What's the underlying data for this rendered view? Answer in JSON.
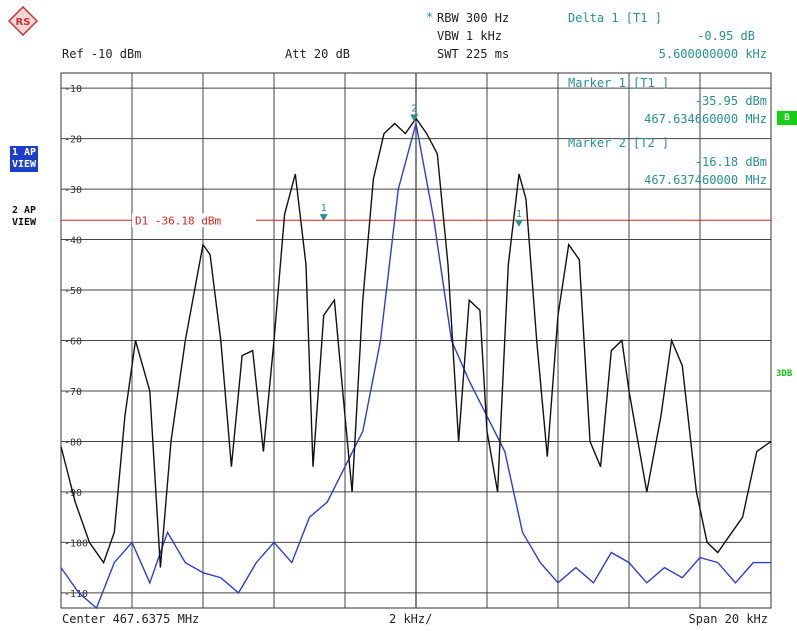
{
  "header": {
    "rbw": "RBW 300 Hz",
    "vbw": "VBW 1 kHz",
    "swt": "SWT 225 ms",
    "ref": "Ref -10 dBm",
    "att": "Att  20 dB",
    "star": "*"
  },
  "delta_marker": {
    "title": "Delta 1 [T1 ]",
    "level": "-0.95 dB",
    "freq": "5.600000000 kHz"
  },
  "marker1": {
    "title": "Marker 1 [T1 ]",
    "level": "-35.95 dBm",
    "freq": "467.634660000 MHz"
  },
  "marker2": {
    "title": "Marker 2 [T2 ]",
    "level": "-16.18 dBm",
    "freq": "467.637460000 MHz"
  },
  "panes": {
    "pane1": "1 AP\nVIEW",
    "pane2": "2 AP\nVIEW"
  },
  "side_tags": {
    "b": "B",
    "db3": "3DB"
  },
  "footer": {
    "center": "Center 467.6375 MHz",
    "div": "2 kHz/",
    "span": "Span 20 kHz"
  },
  "display_line": {
    "label": "D1 -36.18 dBm",
    "level": -36.18,
    "color": "#e02020"
  },
  "colors": {
    "trace1": "#2b3fd0",
    "trace2": "#111111",
    "marker": "#2a8f8f",
    "grid": "#333333"
  },
  "chart_data": {
    "type": "line",
    "xlim": [
      -10,
      10
    ],
    "ylim": [
      -113,
      -7
    ],
    "yticks": [
      -10,
      -20,
      -30,
      -40,
      -50,
      -60,
      -70,
      -80,
      -90,
      -100,
      -110
    ],
    "ytick_labels": [
      "-10",
      "-20",
      "-30",
      "-40",
      "-50",
      "-60",
      "-70",
      "-80",
      "-90",
      "-100",
      "-110"
    ],
    "series": [
      {
        "x": [
          -10,
          -9.6,
          -9.2,
          -8.8,
          -8.5,
          -8.2,
          -7.9,
          -7.5,
          -7.2,
          -6.9,
          -6.5,
          -6.0,
          -5.8,
          -5.5,
          -5.2,
          -4.9,
          -4.6,
          -4.3,
          -4.0,
          -3.7,
          -3.4,
          -3.1,
          -2.9,
          -2.6,
          -2.3,
          -2.0,
          -1.8,
          -1.5,
          -1.2,
          -0.9,
          -0.6,
          -0.3,
          0.0,
          0.3,
          0.6,
          0.9,
          1.2,
          1.5,
          1.8,
          2.0,
          2.3,
          2.6,
          2.9,
          3.1,
          3.4,
          3.7,
          4.0,
          4.3,
          4.6,
          4.9,
          5.2,
          5.5,
          5.8,
          6.0,
          6.5,
          6.9,
          7.2,
          7.5,
          7.9,
          8.2,
          8.5,
          8.8,
          9.2,
          9.6,
          10.0
        ],
        "y": [
          -81,
          -92,
          -100,
          -104,
          -98,
          -75,
          -60,
          -70,
          -105,
          -80,
          -60,
          -41,
          -43,
          -60,
          -85,
          -63,
          -62,
          -82,
          -60,
          -35,
          -27,
          -45,
          -85,
          -55,
          -52,
          -75,
          -90,
          -52,
          -28,
          -19,
          -17,
          -19,
          -16,
          -19,
          -23,
          -45,
          -80,
          -52,
          -54,
          -78,
          -90,
          -45,
          -27,
          -32,
          -60,
          -83,
          -55,
          -41,
          -44,
          -80,
          -85,
          -62,
          -60,
          -70,
          -90,
          -75,
          -60,
          -65,
          -90,
          -100,
          -102,
          -99,
          -95,
          -82,
          -80
        ]
      },
      {
        "x": [
          -10,
          -9.5,
          -9.0,
          -8.5,
          -8.0,
          -7.5,
          -7.0,
          -6.5,
          -6.0,
          -5.5,
          -5.0,
          -4.5,
          -4.0,
          -3.5,
          -3.0,
          -2.5,
          -2.0,
          -1.5,
          -1.0,
          -0.5,
          0.0,
          0.5,
          1.0,
          1.5,
          2.0,
          2.5,
          3.0,
          3.5,
          4.0,
          4.5,
          5.0,
          5.5,
          6.0,
          6.5,
          7.0,
          7.5,
          8.0,
          8.5,
          9.0,
          9.5,
          10.0
        ],
        "y": [
          -105,
          -110,
          -113,
          -104,
          -100,
          -108,
          -98,
          -104,
          -106,
          -107,
          -110,
          -104,
          -100,
          -104,
          -95,
          -92,
          -85,
          -78,
          -60,
          -30,
          -17,
          -36,
          -60,
          -68,
          -75,
          -82,
          -98,
          -104,
          -108,
          -105,
          -108,
          -102,
          -104,
          -108,
          -105,
          -107,
          -103,
          -104,
          -108,
          -104,
          -104
        ]
      }
    ],
    "markers": [
      {
        "label": "1",
        "x": -2.6,
        "y": -35.95
      },
      {
        "label": "2",
        "x": -0.05,
        "y": -16.18
      },
      {
        "label": "1",
        "x": 2.9,
        "y": -37.1
      }
    ]
  }
}
